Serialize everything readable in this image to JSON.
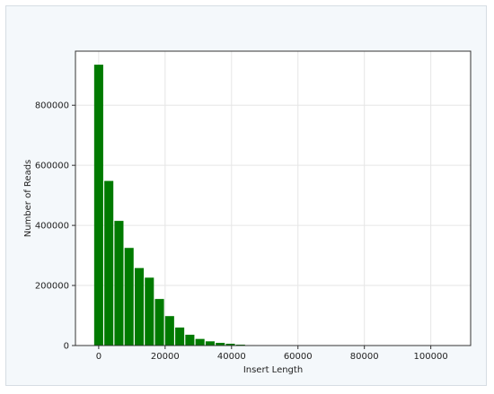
{
  "chart_data": {
    "type": "bar",
    "title": "",
    "xlabel": "Insert Length",
    "ylabel": "Number of Reads",
    "xlim": [
      -7000,
      112000
    ],
    "ylim": [
      0,
      980000
    ],
    "bin_width": 3050,
    "x": [
      0,
      3050,
      6100,
      9150,
      12200,
      15250,
      18300,
      21350,
      24400,
      27450,
      30500,
      33550,
      36600,
      39650,
      42700,
      45750,
      48800
    ],
    "values": [
      935000,
      548000,
      415000,
      325000,
      258000,
      226000,
      155000,
      98000,
      60000,
      36000,
      22000,
      14000,
      9000,
      6000,
      3000,
      1500,
      500
    ],
    "xticks": [
      0,
      20000,
      40000,
      60000,
      80000,
      100000
    ],
    "xtick_labels": [
      "0",
      "20000",
      "40000",
      "60000",
      "80000",
      "100000"
    ],
    "yticks": [
      0,
      200000,
      400000,
      600000,
      800000
    ],
    "ytick_labels": [
      "0",
      "200000",
      "400000",
      "600000",
      "800000"
    ],
    "grid": true,
    "colors": {
      "bar": "#007a00",
      "background": "#f4f8fb",
      "plot_background": "#ffffff",
      "grid": "#e6e6e6",
      "axis": "#333333"
    }
  }
}
